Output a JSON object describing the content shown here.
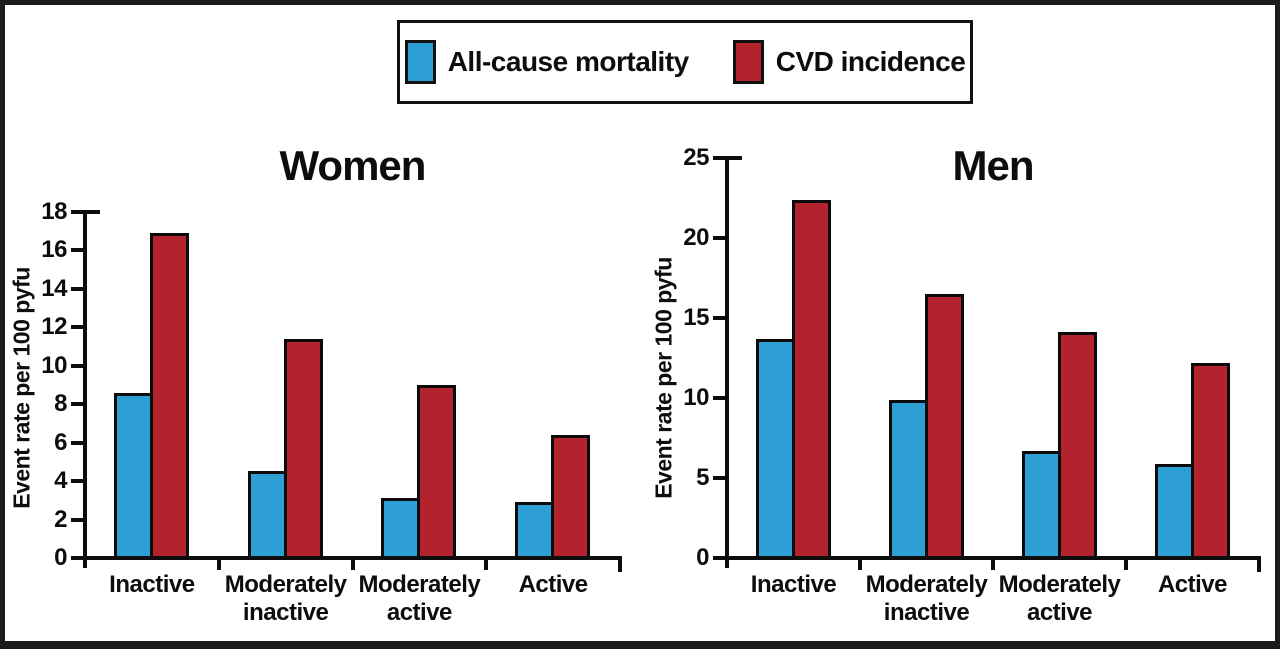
{
  "figure": {
    "description": "Two grouped bar charts comparing event rates by physical activity level",
    "accent_blue": "#2E9FD4",
    "accent_red": "#B2232E"
  },
  "chart_data": [
    {
      "type": "bar",
      "title": "Women",
      "xlabel": "",
      "ylabel": "Event rate per 100 pyfu",
      "categories": [
        "Inactive",
        "Moderately\ninactive",
        "Moderately\nactive",
        "Active"
      ],
      "series": [
        {
          "name": "All-cause mortality",
          "color": "#2E9FD4",
          "values": [
            8.6,
            4.5,
            3.1,
            2.9
          ]
        },
        {
          "name": "CVD incidence",
          "color": "#B2232E",
          "values": [
            16.9,
            11.4,
            9.0,
            6.4
          ]
        }
      ],
      "ylim": [
        0,
        18
      ],
      "ytick_step": 2,
      "grid": false,
      "legend_position": "top-center-shared"
    },
    {
      "type": "bar",
      "title": "Men",
      "xlabel": "",
      "ylabel": "Event rate per 100 pyfu",
      "categories": [
        "Inactive",
        "Moderately\ninactive",
        "Moderately\nactive",
        "Active"
      ],
      "series": [
        {
          "name": "All-cause mortality",
          "color": "#2E9FD4",
          "values": [
            13.7,
            9.9,
            6.7,
            5.9
          ]
        },
        {
          "name": "CVD incidence",
          "color": "#B2232E",
          "values": [
            22.4,
            16.5,
            14.1,
            12.2
          ]
        }
      ],
      "ylim": [
        0,
        25
      ],
      "ytick_step": 5,
      "grid": false,
      "legend_position": "top-center-shared"
    }
  ]
}
